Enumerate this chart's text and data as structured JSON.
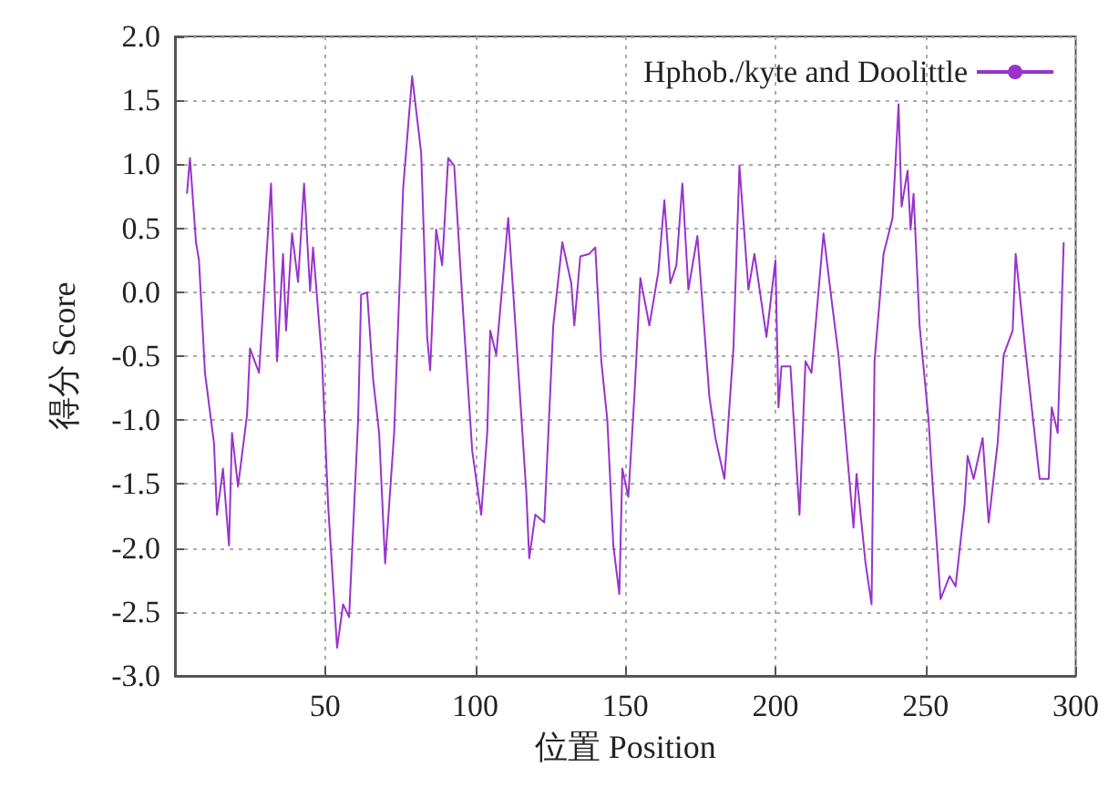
{
  "chart_data": {
    "type": "line",
    "xlabel": "位置 Position",
    "ylabel": "得分 Score",
    "series": [
      {
        "name": "Hphob./kyte and Doolittle",
        "color": "#9933cc",
        "x": [
          4,
          5,
          7,
          8,
          10,
          13,
          14,
          16,
          18,
          19,
          21,
          24,
          25,
          28,
          32,
          34,
          36,
          37,
          39,
          41,
          43,
          45,
          46,
          49,
          51,
          54,
          56,
          58,
          61,
          62,
          64,
          66,
          68,
          70,
          73,
          76,
          79,
          82,
          84,
          85,
          87,
          89,
          91,
          93,
          96,
          99,
          102,
          104,
          105,
          107,
          111,
          113,
          117,
          118,
          120,
          123,
          126,
          129,
          132,
          133,
          135,
          138,
          140,
          142,
          144,
          146,
          148,
          149,
          151,
          153,
          155,
          158,
          161,
          163,
          165,
          167,
          169,
          171,
          174,
          178,
          180,
          183,
          186,
          188,
          191,
          193,
          197,
          200,
          201,
          202,
          205,
          208,
          210,
          212,
          216,
          219,
          221,
          226,
          227,
          230,
          232,
          233,
          236,
          239,
          241,
          242,
          244,
          245,
          246,
          248,
          251,
          252,
          255,
          258,
          260,
          263,
          264,
          266,
          269,
          271,
          274,
          276,
          279,
          280,
          283,
          286,
          288,
          291,
          292,
          294,
          296
        ],
        "values": [
          0.77,
          1.05,
          0.39,
          0.25,
          -0.63,
          -1.18,
          -1.74,
          -1.38,
          -1.98,
          -1.1,
          -1.52,
          -0.96,
          -0.44,
          -0.63,
          0.85,
          -0.54,
          0.3,
          -0.3,
          0.46,
          0.08,
          0.85,
          0.01,
          0.35,
          -0.54,
          -1.66,
          -2.78,
          -2.44,
          -2.54,
          -1.0,
          -0.02,
          0.0,
          -0.68,
          -1.1,
          -2.12,
          -1.1,
          0.81,
          1.69,
          1.09,
          -0.35,
          -0.61,
          0.49,
          0.21,
          1.05,
          0.99,
          -0.17,
          -1.24,
          -1.74,
          -1.1,
          -0.3,
          -0.49,
          0.58,
          -0.12,
          -1.56,
          -2.08,
          -1.74,
          -1.8,
          -0.26,
          0.39,
          0.07,
          -0.26,
          0.28,
          0.3,
          0.35,
          -0.54,
          -1.0,
          -1.98,
          -2.36,
          -1.38,
          -1.6,
          -0.82,
          0.11,
          -0.26,
          0.16,
          0.72,
          0.07,
          0.21,
          0.85,
          0.02,
          0.44,
          -0.82,
          -1.14,
          -1.46,
          -0.44,
          0.99,
          0.02,
          0.3,
          -0.35,
          0.25,
          -0.9,
          -0.58,
          -0.58,
          -1.74,
          -0.54,
          -0.63,
          0.46,
          -0.12,
          -0.49,
          -1.84,
          -1.42,
          -2.12,
          -2.44,
          -0.54,
          0.3,
          0.58,
          1.47,
          0.67,
          0.95,
          0.49,
          0.77,
          -0.26,
          -1.0,
          -1.38,
          -2.4,
          -2.22,
          -2.3,
          -1.66,
          -1.28,
          -1.46,
          -1.14,
          -1.8,
          -1.18,
          -0.49,
          -0.3,
          0.3,
          -0.4,
          -1.04,
          -1.46,
          -1.46,
          -0.9,
          -1.1,
          0.39
        ]
      }
    ],
    "xlim": [
      0,
      300
    ],
    "xticks": [
      50,
      100,
      150,
      200,
      250,
      300
    ],
    "ylim": [
      -3,
      2
    ],
    "yticks": [
      {
        "value": -3,
        "label": "-3.0"
      },
      {
        "value": -2.5,
        "label": "-2.5"
      },
      {
        "value": -2,
        "label": "-2.0"
      },
      {
        "value": -1.5,
        "label": "-1.5"
      },
      {
        "value": -1,
        "label": "-1.0"
      },
      {
        "value": -0.5,
        "label": "-0.5"
      },
      {
        "value": 0,
        "label": "0.0"
      },
      {
        "value": 0.5,
        "label": "0.5"
      },
      {
        "value": 1,
        "label": "1.0"
      },
      {
        "value": 1.5,
        "label": "1.5"
      },
      {
        "value": 2,
        "label": "2.0"
      }
    ],
    "grid": true,
    "legend": "top right",
    "marker": "none",
    "line_style": "solid"
  }
}
